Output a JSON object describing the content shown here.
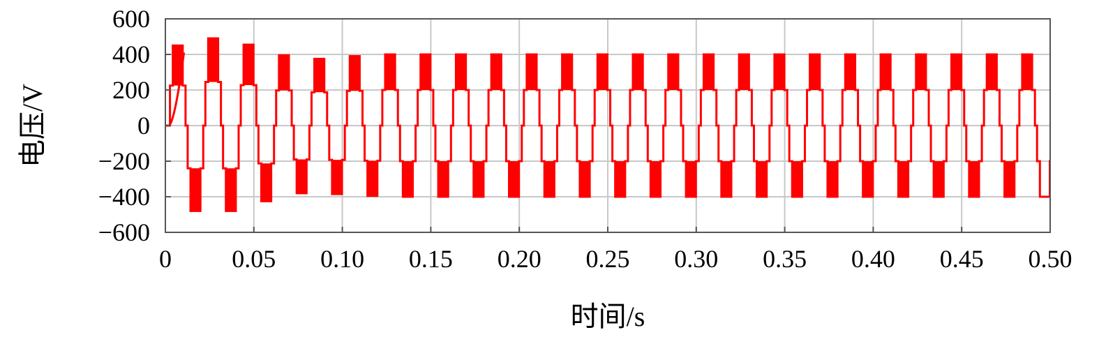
{
  "chart_data": {
    "type": "line",
    "xlabel": "时间/s",
    "ylabel": "电压/V",
    "xlim": [
      0,
      0.5
    ],
    "ylim": [
      -600,
      600
    ],
    "x_ticks": [
      "0",
      "0.05",
      "0.10",
      "0.15",
      "0.20",
      "0.25",
      "0.30",
      "0.35",
      "0.40",
      "0.45",
      "0.50"
    ],
    "y_ticks": [
      "600",
      "400",
      "200",
      "0",
      "−200",
      "−400",
      "−600"
    ],
    "grid": true,
    "legend": "none",
    "series": [
      {
        "color": "#ff0000",
        "frequency_hz": 50,
        "steady_levels_v": [
          -400,
          -200,
          0,
          200,
          400
        ],
        "startup_peaks_v": [
          {
            "t": 0.011,
            "v": 450
          },
          {
            "t": 0.018,
            "v": -480
          },
          {
            "t": 0.026,
            "v": 490
          },
          {
            "t": 0.036,
            "v": -480
          },
          {
            "t": 0.045,
            "v": 455
          },
          {
            "t": 0.055,
            "v": -425
          },
          {
            "t": 0.065,
            "v": 395
          },
          {
            "t": 0.076,
            "v": -380
          },
          {
            "t": 0.086,
            "v": 375
          },
          {
            "t": 0.096,
            "v": -385
          },
          {
            "t": 0.106,
            "v": 390
          },
          {
            "t": 0.116,
            "v": -395
          }
        ],
        "steady_peak_v": 400
      }
    ]
  }
}
